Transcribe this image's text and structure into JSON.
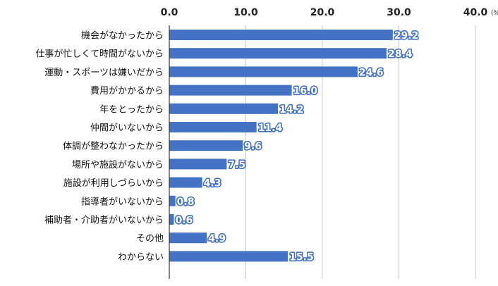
{
  "chart_data": {
    "type": "bar",
    "orientation": "horizontal",
    "unit": "(%)",
    "xlim": [
      0,
      40
    ],
    "xticks": [
      "0.0",
      "10.0",
      "20.0",
      "30.0",
      "40.0"
    ],
    "grid": true,
    "bar_color": "#4472c4",
    "categories": [
      "機会がなかったから",
      "仕事が忙しくて時間がないから",
      "運動・スポーツは嫌いだから",
      "費用がかかるから",
      "年をとったから",
      "仲間がいないから",
      "体調が整わなかったから",
      "場所や施設がないから",
      "施設が利用しづらいから",
      "指導者がいないから",
      "補助者・介助者がいないから",
      "その他",
      "わからない"
    ],
    "values": [
      29.2,
      28.4,
      24.6,
      16.0,
      14.2,
      11.4,
      9.6,
      7.5,
      4.3,
      0.8,
      0.6,
      4.9,
      15.5
    ],
    "value_labels": [
      "29.2",
      "28.4",
      "24.6",
      "16.0",
      "14.2",
      "11.4",
      "9.6",
      "7.5",
      "4.3",
      "0.8",
      "0.6",
      "4.9",
      "15.5"
    ]
  }
}
